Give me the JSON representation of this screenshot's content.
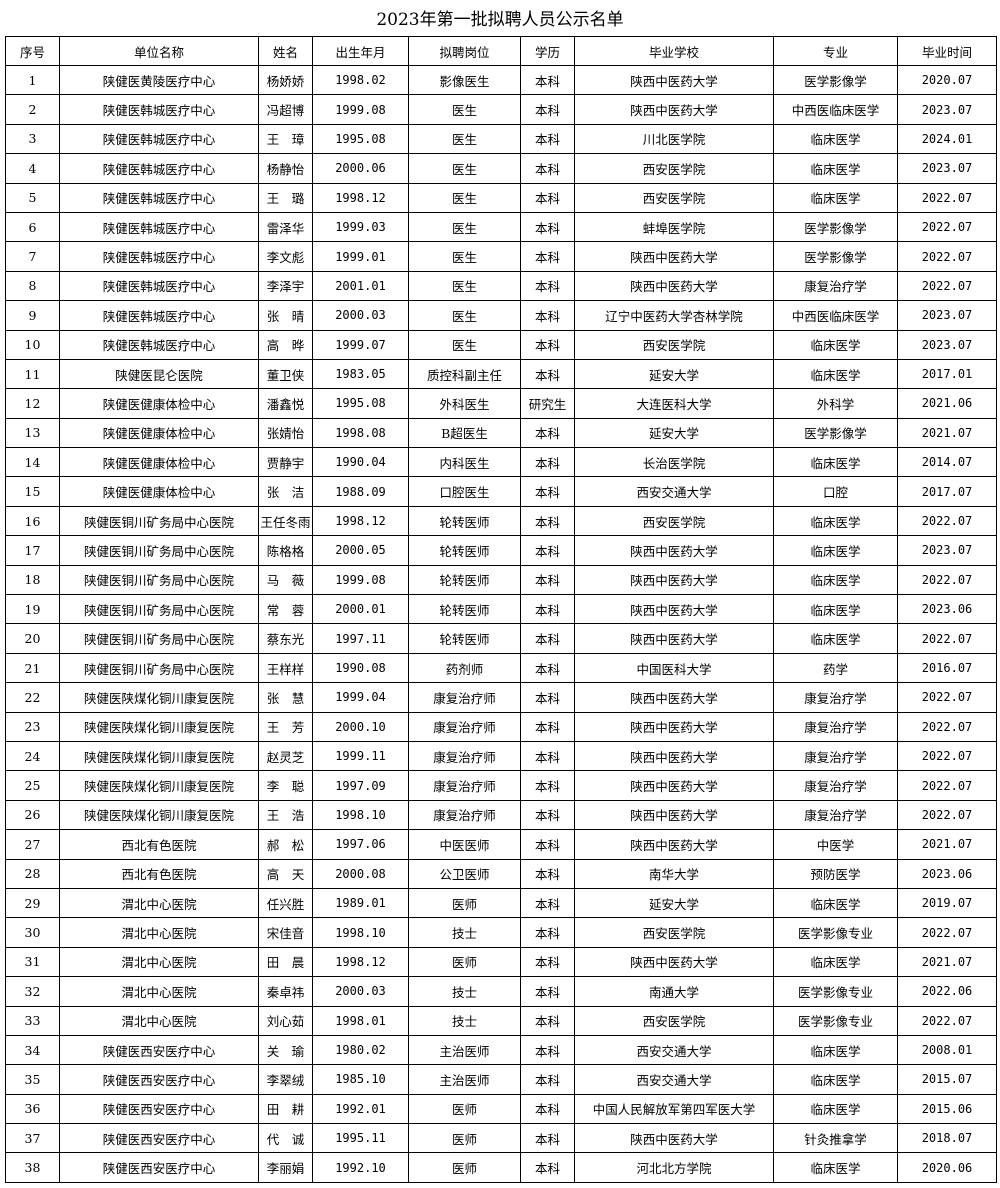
{
  "title": "2023年第一批拟聘人员公示名单",
  "headers": [
    "序号",
    "单位名称",
    "姓名",
    "出生年月",
    "拟聘岗位",
    "学历",
    "毕业学校",
    "专业",
    "毕业时间"
  ],
  "rows": [
    [
      "1",
      "陕健医黄陵医疗中心",
      "杨娇娇",
      "1998.02",
      "影像医生",
      "本科",
      "陕西中医药大学",
      "医学影像学",
      "2020.07"
    ],
    [
      "2",
      "陕健医韩城医疗中心",
      "冯超博",
      "1999.08",
      "医生",
      "本科",
      "陕西中医药大学",
      "中西医临床医学",
      "2023.07"
    ],
    [
      "3",
      "陕健医韩城医疗中心",
      "王　璋",
      "1995.08",
      "医生",
      "本科",
      "川北医学院",
      "临床医学",
      "2024.01"
    ],
    [
      "4",
      "陕健医韩城医疗中心",
      "杨静怡",
      "2000.06",
      "医生",
      "本科",
      "西安医学院",
      "临床医学",
      "2023.07"
    ],
    [
      "5",
      "陕健医韩城医疗中心",
      "王　璐",
      "1998.12",
      "医生",
      "本科",
      "西安医学院",
      "临床医学",
      "2022.07"
    ],
    [
      "6",
      "陕健医韩城医疗中心",
      "雷泽华",
      "1999.03",
      "医生",
      "本科",
      "蚌埠医学院",
      "医学影像学",
      "2022.07"
    ],
    [
      "7",
      "陕健医韩城医疗中心",
      "李文彪",
      "1999.01",
      "医生",
      "本科",
      "陕西中医药大学",
      "医学影像学",
      "2022.07"
    ],
    [
      "8",
      "陕健医韩城医疗中心",
      "李泽宇",
      "2001.01",
      "医生",
      "本科",
      "陕西中医药大学",
      "康复治疗学",
      "2022.07"
    ],
    [
      "9",
      "陕健医韩城医疗中心",
      "张　晴",
      "2000.03",
      "医生",
      "本科",
      "辽宁中医药大学杏林学院",
      "中西医临床医学",
      "2023.07"
    ],
    [
      "10",
      "陕健医韩城医疗中心",
      "高　晔",
      "1999.07",
      "医生",
      "本科",
      "西安医学院",
      "临床医学",
      "2023.07"
    ],
    [
      "11",
      "陕健医昆仑医院",
      "董卫侠",
      "1983.05",
      "质控科副主任",
      "本科",
      "延安大学",
      "临床医学",
      "2017.01"
    ],
    [
      "12",
      "陕健医健康体检中心",
      "潘鑫悦",
      "1995.08",
      "外科医生",
      "研究生",
      "大连医科大学",
      "外科学",
      "2021.06"
    ],
    [
      "13",
      "陕健医健康体检中心",
      "张婧怡",
      "1998.08",
      "B超医生",
      "本科",
      "延安大学",
      "医学影像学",
      "2021.07"
    ],
    [
      "14",
      "陕健医健康体检中心",
      "贾静宇",
      "1990.04",
      "内科医生",
      "本科",
      "长治医学院",
      "临床医学",
      "2014.07"
    ],
    [
      "15",
      "陕健医健康体检中心",
      "张　洁",
      "1988.09",
      "口腔医生",
      "本科",
      "西安交通大学",
      "口腔",
      "2017.07"
    ],
    [
      "16",
      "陕健医铜川矿务局中心医院",
      "王任冬雨",
      "1998.12",
      "轮转医师",
      "本科",
      "西安医学院",
      "临床医学",
      "2022.07"
    ],
    [
      "17",
      "陕健医铜川矿务局中心医院",
      "陈格格",
      "2000.05",
      "轮转医师",
      "本科",
      "陕西中医药大学",
      "临床医学",
      "2023.07"
    ],
    [
      "18",
      "陕健医铜川矿务局中心医院",
      "马　薇",
      "1999.08",
      "轮转医师",
      "本科",
      "陕西中医药大学",
      "临床医学",
      "2022.07"
    ],
    [
      "19",
      "陕健医铜川矿务局中心医院",
      "常　蓉",
      "2000.01",
      "轮转医师",
      "本科",
      "陕西中医药大学",
      "临床医学",
      "2023.06"
    ],
    [
      "20",
      "陕健医铜川矿务局中心医院",
      "蔡东光",
      "1997.11",
      "轮转医师",
      "本科",
      "陕西中医药大学",
      "临床医学",
      "2022.07"
    ],
    [
      "21",
      "陕健医铜川矿务局中心医院",
      "王样样",
      "1990.08",
      "药剂师",
      "本科",
      "中国医科大学",
      "药学",
      "2016.07"
    ],
    [
      "22",
      "陕健医陕煤化铜川康复医院",
      "张　慧",
      "1999.04",
      "康复治疗师",
      "本科",
      "陕西中医药大学",
      "康复治疗学",
      "2022.07"
    ],
    [
      "23",
      "陕健医陕煤化铜川康复医院",
      "王　芳",
      "2000.10",
      "康复治疗师",
      "本科",
      "陕西中医药大学",
      "康复治疗学",
      "2022.07"
    ],
    [
      "24",
      "陕健医陕煤化铜川康复医院",
      "赵灵芝",
      "1999.11",
      "康复治疗师",
      "本科",
      "陕西中医药大学",
      "康复治疗学",
      "2022.07"
    ],
    [
      "25",
      "陕健医陕煤化铜川康复医院",
      "李　聪",
      "1997.09",
      "康复治疗师",
      "本科",
      "陕西中医药大学",
      "康复治疗学",
      "2022.07"
    ],
    [
      "26",
      "陕健医陕煤化铜川康复医院",
      "王　浩",
      "1998.10",
      "康复治疗师",
      "本科",
      "陕西中医药大学",
      "康复治疗学",
      "2022.07"
    ],
    [
      "27",
      "西北有色医院",
      "郝　松",
      "1997.06",
      "中医医师",
      "本科",
      "陕西中医药大学",
      "中医学",
      "2021.07"
    ],
    [
      "28",
      "西北有色医院",
      "高　天",
      "2000.08",
      "公卫医师",
      "本科",
      "南华大学",
      "预防医学",
      "2023.06"
    ],
    [
      "29",
      "渭北中心医院",
      "任兴胜",
      "1989.01",
      "医师",
      "本科",
      "延安大学",
      "临床医学",
      "2019.07"
    ],
    [
      "30",
      "渭北中心医院",
      "宋佳音",
      "1998.10",
      "技士",
      "本科",
      "西安医学院",
      "医学影像专业",
      "2022.07"
    ],
    [
      "31",
      "渭北中心医院",
      "田　晨",
      "1998.12",
      "医师",
      "本科",
      "陕西中医药大学",
      "临床医学",
      "2021.07"
    ],
    [
      "32",
      "渭北中心医院",
      "秦卓祎",
      "2000.03",
      "技士",
      "本科",
      "南通大学",
      "医学影像专业",
      "2022.06"
    ],
    [
      "33",
      "渭北中心医院",
      "刘心茹",
      "1998.01",
      "技士",
      "本科",
      "西安医学院",
      "医学影像专业",
      "2022.07"
    ],
    [
      "34",
      "陕健医西安医疗中心",
      "关　瑜",
      "1980.02",
      "主治医师",
      "本科",
      "西安交通大学",
      "临床医学",
      "2008.01"
    ],
    [
      "35",
      "陕健医西安医疗中心",
      "李翠绒",
      "1985.10",
      "主治医师",
      "本科",
      "西安交通大学",
      "临床医学",
      "2015.07"
    ],
    [
      "36",
      "陕健医西安医疗中心",
      "田　耕",
      "1992.01",
      "医师",
      "本科",
      "中国人民解放军第四军医大学",
      "临床医学",
      "2015.06"
    ],
    [
      "37",
      "陕健医西安医疗中心",
      "代　诚",
      "1995.11",
      "医师",
      "本科",
      "陕西中医药大学",
      "针灸推拿学",
      "2018.07"
    ],
    [
      "38",
      "陕健医西安医疗中心",
      "李丽娟",
      "1992.10",
      "医师",
      "本科",
      "河北北方学院",
      "临床医学",
      "2020.06"
    ]
  ]
}
